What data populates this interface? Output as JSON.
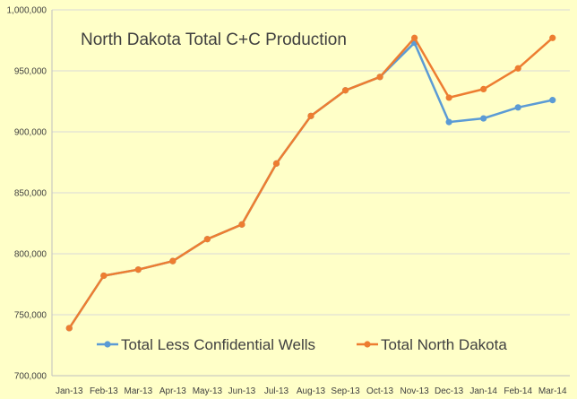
{
  "chart_data": {
    "type": "line",
    "title": "North Dakota Total C+C Production",
    "xlabel": "",
    "ylabel": "",
    "categories": [
      "Jan-13",
      "Feb-13",
      "Mar-13",
      "Apr-13",
      "May-13",
      "Jun-13",
      "Jul-13",
      "Aug-13",
      "Sep-13",
      "Oct-13",
      "Nov-13",
      "Dec-13",
      "Jan-14",
      "Feb-14",
      "Mar-14"
    ],
    "ylim": [
      700000,
      1000000
    ],
    "yticks": [
      700000,
      750000,
      800000,
      850000,
      900000,
      950000,
      1000000
    ],
    "ytick_labels": [
      "700,000",
      "750,000",
      "800,000",
      "850,000",
      "900,000",
      "950,000",
      "1,000,000"
    ],
    "grid": "horizontal",
    "legend_position": "bottom-inside",
    "series": [
      {
        "name": "Total Less Confidential Wells",
        "color": "#5b9bd5",
        "values": [
          739000,
          782000,
          787000,
          794000,
          812000,
          824000,
          874000,
          913000,
          934000,
          945000,
          973000,
          908000,
          911000,
          920000,
          926000
        ]
      },
      {
        "name": "Total North Dakota",
        "color": "#ed7d31",
        "values": [
          739000,
          782000,
          787000,
          794000,
          812000,
          824000,
          874000,
          913000,
          934000,
          945000,
          977000,
          928000,
          935000,
          952000,
          977000
        ]
      }
    ]
  }
}
